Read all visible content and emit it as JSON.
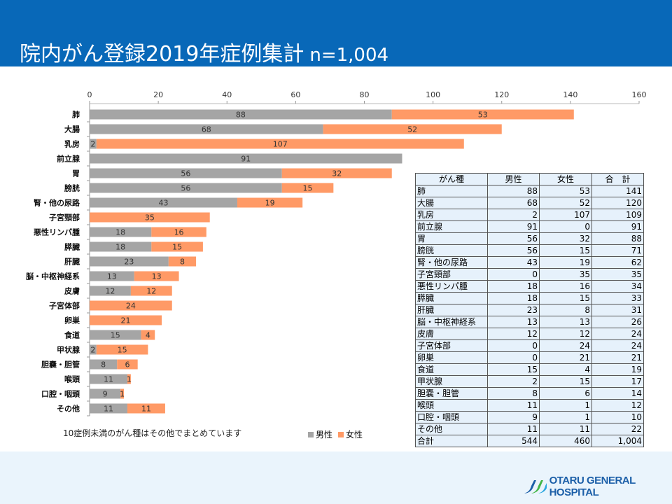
{
  "header": {
    "title": "院内がん登録2019年症例集計",
    "n": "n=1,004"
  },
  "chart_data": {
    "type": "bar",
    "orientation": "horizontal",
    "stacked": true,
    "categories": [
      "肺",
      "大腸",
      "乳房",
      "前立腺",
      "胃",
      "膀胱",
      "腎・他の尿路",
      "子宮頸部",
      "悪性リンパ腫",
      "膵臓",
      "肝臓",
      "脳・中枢神経系",
      "皮膚",
      "子宮体部",
      "卵巣",
      "食道",
      "甲状腺",
      "胆嚢・胆管",
      "喉頭",
      "口腔・咽頭",
      "その他"
    ],
    "series": [
      {
        "name": "男性",
        "color": "#a5a5a5",
        "values": [
          88,
          68,
          2,
          91,
          56,
          56,
          43,
          0,
          18,
          18,
          23,
          13,
          12,
          0,
          0,
          15,
          2,
          8,
          11,
          9,
          11
        ]
      },
      {
        "name": "女性",
        "color": "#ff9a66",
        "values": [
          53,
          52,
          107,
          0,
          32,
          15,
          19,
          35,
          16,
          15,
          8,
          13,
          12,
          24,
          21,
          4,
          15,
          6,
          1,
          1,
          11
        ]
      }
    ],
    "xlim": [
      0,
      160
    ],
    "xticks": [
      0,
      20,
      40,
      60,
      80,
      100,
      120,
      140,
      160
    ],
    "legend": "bottom",
    "grid": false
  },
  "note": "10症例未満のがん種はその他でまとめています",
  "table": {
    "headers": [
      "がん種",
      "男性",
      "女性",
      "合　計"
    ],
    "rows": [
      [
        "肺",
        "88",
        "53",
        "141"
      ],
      [
        "大腸",
        "68",
        "52",
        "120"
      ],
      [
        "乳房",
        "2",
        "107",
        "109"
      ],
      [
        "前立腺",
        "91",
        "0",
        "91"
      ],
      [
        "胃",
        "56",
        "32",
        "88"
      ],
      [
        "膀胱",
        "56",
        "15",
        "71"
      ],
      [
        "腎・他の尿路",
        "43",
        "19",
        "62"
      ],
      [
        "子宮頸部",
        "0",
        "35",
        "35"
      ],
      [
        "悪性リンパ腫",
        "18",
        "16",
        "34"
      ],
      [
        "膵臓",
        "18",
        "15",
        "33"
      ],
      [
        "肝臓",
        "23",
        "8",
        "31"
      ],
      [
        "脳・中枢神経系",
        "13",
        "13",
        "26"
      ],
      [
        "皮膚",
        "12",
        "12",
        "24"
      ],
      [
        "子宮体部",
        "0",
        "24",
        "24"
      ],
      [
        "卵巣",
        "0",
        "21",
        "21"
      ],
      [
        "食道",
        "15",
        "4",
        "19"
      ],
      [
        "甲状腺",
        "2",
        "15",
        "17"
      ],
      [
        "胆嚢・胆管",
        "8",
        "6",
        "14"
      ],
      [
        "喉頭",
        "11",
        "1",
        "12"
      ],
      [
        "口腔・咽頭",
        "9",
        "1",
        "10"
      ],
      [
        "その他",
        "11",
        "11",
        "22"
      ],
      [
        "合計",
        "544",
        "460",
        "1,004"
      ]
    ]
  },
  "logo": {
    "text": "OTARU GENERAL HOSPITAL"
  }
}
